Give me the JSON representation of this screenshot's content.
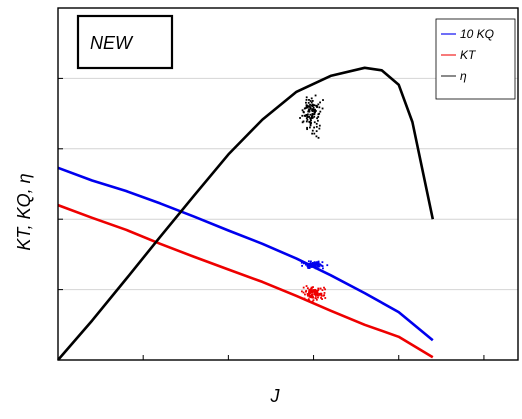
{
  "chart_data": {
    "type": "line",
    "xlabel": "J",
    "ylabel": "KT, KQ, η",
    "annotation": "NEW",
    "xlim": [
      0,
      1.35
    ],
    "ylim": [
      0,
      1
    ],
    "grid": "horizontal",
    "legend_position": "top-right",
    "series": [
      {
        "name": "10 KQ",
        "color": "#0000ee",
        "x": [
          0,
          0.1,
          0.2,
          0.3,
          0.4,
          0.5,
          0.6,
          0.7,
          0.8,
          0.9,
          1.0,
          1.1
        ],
        "y": [
          0.546,
          0.51,
          0.48,
          0.445,
          0.407,
          0.368,
          0.33,
          0.288,
          0.241,
          0.19,
          0.136,
          0.056
        ]
      },
      {
        "name": "KT",
        "color": "#ee0000",
        "x": [
          0,
          0.1,
          0.2,
          0.3,
          0.4,
          0.5,
          0.6,
          0.7,
          0.8,
          0.9,
          1.0,
          1.1
        ],
        "y": [
          0.44,
          0.404,
          0.37,
          0.33,
          0.293,
          0.257,
          0.222,
          0.182,
          0.14,
          0.1,
          0.066,
          0.008
        ]
      },
      {
        "name": "η",
        "color": "#000000",
        "x": [
          0,
          0.1,
          0.2,
          0.3,
          0.4,
          0.5,
          0.6,
          0.7,
          0.8,
          0.9,
          0.95,
          1.0,
          1.04,
          1.1
        ],
        "y": [
          0.0,
          0.112,
          0.23,
          0.35,
          0.468,
          0.584,
          0.683,
          0.762,
          0.807,
          0.83,
          0.823,
          0.782,
          0.676,
          0.4
        ]
      }
    ],
    "experimental_points": [
      {
        "series": "10 KQ",
        "x_center": 0.75,
        "x_spread": 0.045,
        "y_center": 0.27,
        "y_spread": 0.014,
        "count": 80,
        "color": "#0000ee"
      },
      {
        "series": "KT",
        "x_center": 0.75,
        "x_spread": 0.045,
        "y_center": 0.19,
        "y_spread": 0.025,
        "count": 110,
        "color": "#ee0000"
      },
      {
        "series": "η",
        "x_center": 0.745,
        "x_spread": 0.04,
        "y_center": 0.7,
        "y_spread": 0.08,
        "count": 110,
        "color": "#000000"
      }
    ]
  }
}
